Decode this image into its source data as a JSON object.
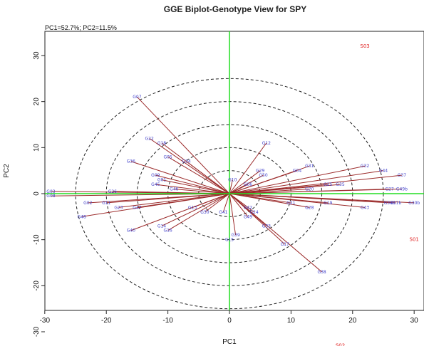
{
  "chart_data": {
    "type": "scatter",
    "title": "GGE Biplot-Genotype View for SPY",
    "subtitle": "PC1=52.7%; PC2=11.5%",
    "xlabel": "PC1",
    "ylabel": "PC2",
    "xlim": [
      -30,
      31
    ],
    "ylim": [
      -36,
      35
    ],
    "xticks": [
      "-30",
      "-20",
      "-10",
      "0",
      "10",
      "20",
      "30"
    ],
    "yticks": [
      "-30",
      "-20",
      "-10",
      "0",
      "10",
      "20",
      "30"
    ],
    "circle_radii": [
      5,
      10,
      15,
      20,
      25
    ],
    "colors": {
      "axis_lines": "#22dd22",
      "vectors": "#9b2a2a",
      "genotype_labels": "#4444cc",
      "environment_labels": "#e02020",
      "circles": "#222222"
    },
    "environments": [
      {
        "label": "S03",
        "x": 22,
        "y": 32
      },
      {
        "label": "S01",
        "x": 30,
        "y": -10
      },
      {
        "label": "S02",
        "x": 18,
        "y": -33
      }
    ],
    "genotypes": [
      {
        "label": "G07",
        "x": -15,
        "y": 21
      },
      {
        "label": "G22",
        "x": -13,
        "y": 12
      },
      {
        "label": "G18",
        "x": -11,
        "y": 11
      },
      {
        "label": "G05",
        "x": -10,
        "y": 8
      },
      {
        "label": "G34",
        "x": -7,
        "y": 7
      },
      {
        "label": "G36",
        "x": -16,
        "y": 7
      },
      {
        "label": "G09",
        "x": -12,
        "y": 4
      },
      {
        "label": "G01",
        "x": -11,
        "y": 3
      },
      {
        "label": "G45",
        "x": -12,
        "y": 2
      },
      {
        "label": "G46",
        "x": -9,
        "y": 1
      },
      {
        "label": "G03",
        "x": -29,
        "y": 0.5
      },
      {
        "label": "G08",
        "x": -29,
        "y": -0.5
      },
      {
        "label": "G26",
        "x": -19,
        "y": 0.5
      },
      {
        "label": "G02",
        "x": -23,
        "y": -2
      },
      {
        "label": "G11",
        "x": -20,
        "y": -2
      },
      {
        "label": "G23",
        "x": -18,
        "y": -3
      },
      {
        "label": "G47",
        "x": -15,
        "y": -3
      },
      {
        "label": "G48",
        "x": -24,
        "y": -5
      },
      {
        "label": "G40",
        "x": -16,
        "y": -8
      },
      {
        "label": "G14",
        "x": -11,
        "y": -7
      },
      {
        "label": "G16",
        "x": -10,
        "y": -8
      },
      {
        "label": "G13",
        "x": -6,
        "y": -3
      },
      {
        "label": "G30",
        "x": -4,
        "y": -4
      },
      {
        "label": "G41",
        "x": -1,
        "y": -4
      },
      {
        "label": "G15",
        "x": 0,
        "y": -10
      },
      {
        "label": "G39",
        "x": 1,
        "y": -9
      },
      {
        "label": "G42",
        "x": 3,
        "y": -3
      },
      {
        "label": "G49",
        "x": 3,
        "y": -5
      },
      {
        "label": "G24",
        "x": 4,
        "y": -4
      },
      {
        "label": "G33",
        "x": 6,
        "y": -7
      },
      {
        "label": "G17",
        "x": 9,
        "y": -11
      },
      {
        "label": "G38",
        "x": 15,
        "y": -17
      },
      {
        "label": "G10",
        "x": 0.5,
        "y": 3
      },
      {
        "label": "G06",
        "x": 3,
        "y": 2
      },
      {
        "label": "G29",
        "x": 5,
        "y": 5
      },
      {
        "label": "G50",
        "x": 5.5,
        "y": 4
      },
      {
        "label": "G12",
        "x": 6,
        "y": 11
      },
      {
        "label": "G04",
        "x": 11,
        "y": 5
      },
      {
        "label": "G31",
        "x": 13,
        "y": 6
      },
      {
        "label": "G25",
        "x": 16,
        "y": 2
      },
      {
        "label": "G35",
        "x": 18,
        "y": 2
      },
      {
        "label": "G20",
        "x": 13,
        "y": 1
      },
      {
        "label": "G21",
        "x": 10,
        "y": -2
      },
      {
        "label": "G28",
        "x": 13,
        "y": -3
      },
      {
        "label": "G19",
        "x": 16,
        "y": -2
      },
      {
        "label": "G43",
        "x": 22,
        "y": -3
      },
      {
        "label": "G32",
        "x": 22,
        "y": 6
      },
      {
        "label": "G44",
        "x": 25,
        "y": 5
      },
      {
        "label": "G37",
        "x": 28,
        "y": 4
      },
      {
        "label": "G27",
        "x": 26,
        "y": 1
      },
      {
        "label": "G49b",
        "x": 28,
        "y": 1
      },
      {
        "label": "G34b",
        "x": 26,
        "y": -2
      },
      {
        "label": "G11b",
        "x": 27,
        "y": -2
      },
      {
        "label": "G30b",
        "x": 30,
        "y": -2
      }
    ]
  }
}
